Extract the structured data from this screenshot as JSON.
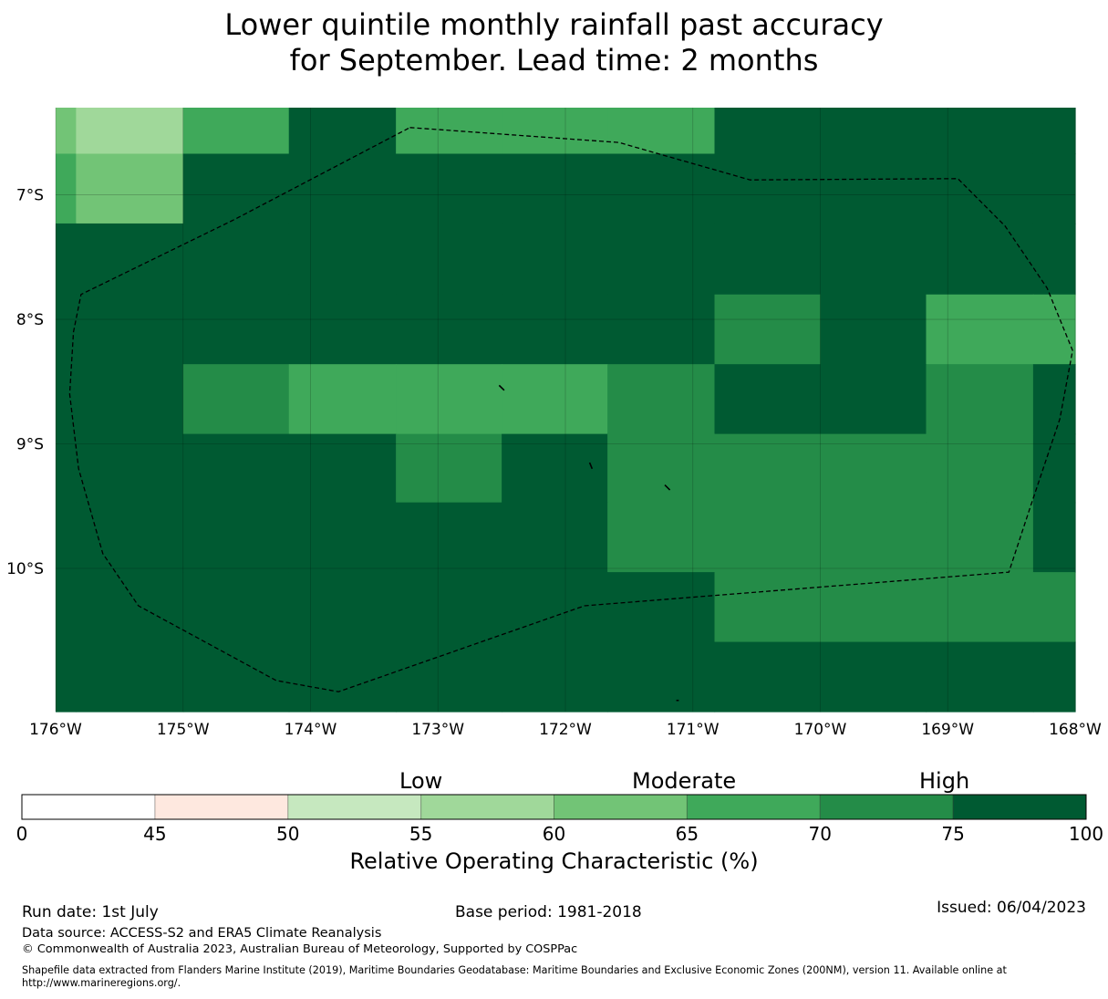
{
  "title": {
    "line1": "Lower quintile monthly rainfall past accuracy",
    "line2": "for September. Lead time: 2 months"
  },
  "map": {
    "lon_range": [
      -176,
      -168
    ],
    "lat_range": [
      -11.15,
      -6.3
    ],
    "lon_ticks": [
      {
        "value": -176,
        "label": "176°W"
      },
      {
        "value": -175,
        "label": "175°W"
      },
      {
        "value": -174,
        "label": "174°W"
      },
      {
        "value": -173,
        "label": "173°W"
      },
      {
        "value": -172,
        "label": "172°W"
      },
      {
        "value": -171,
        "label": "171°W"
      },
      {
        "value": -170,
        "label": "170°W"
      },
      {
        "value": -169,
        "label": "169°W"
      },
      {
        "value": -168,
        "label": "168°W"
      }
    ],
    "lat_ticks": [
      {
        "value": -7,
        "label": "7°S"
      },
      {
        "value": -8,
        "label": "8°S"
      },
      {
        "value": -9,
        "label": "9°S"
      },
      {
        "value": -10,
        "label": "10°S"
      }
    ],
    "grid_lines": true,
    "cell_lon_edges": [
      -176,
      -175.84,
      -175,
      -174.17,
      -173.33,
      -172.5,
      -171.67,
      -170.83,
      -170,
      -169.17,
      -168.33,
      -168
    ],
    "cell_lat_edges": [
      -6.3,
      -6.67,
      -7.23,
      -7.8,
      -8.36,
      -8.92,
      -9.47,
      -10.03,
      -10.59,
      -11.15
    ],
    "bin_rows": [
      [
        4,
        3,
        5,
        7,
        5,
        5,
        5,
        7,
        7,
        7,
        7
      ],
      [
        5,
        4,
        7,
        7,
        7,
        7,
        7,
        7,
        7,
        7,
        7
      ],
      [
        7,
        7,
        7,
        7,
        7,
        7,
        7,
        7,
        7,
        7,
        7
      ],
      [
        7,
        7,
        7,
        7,
        7,
        7,
        7,
        6,
        7,
        5,
        5
      ],
      [
        7,
        7,
        6,
        5,
        5,
        5,
        6,
        7,
        7,
        6,
        7
      ],
      [
        7,
        7,
        7,
        7,
        6,
        7,
        6,
        6,
        6,
        6,
        7
      ],
      [
        7,
        7,
        7,
        7,
        7,
        7,
        6,
        6,
        6,
        6,
        7
      ],
      [
        7,
        7,
        7,
        7,
        7,
        7,
        7,
        6,
        6,
        6,
        6
      ],
      [
        7,
        7,
        7,
        7,
        7,
        7,
        7,
        7,
        7,
        7,
        7
      ]
    ],
    "eez_boundary": [
      [
        -173.22,
        -6.46
      ],
      [
        -171.58,
        -6.58
      ],
      [
        -170.55,
        -6.88
      ],
      [
        -168.92,
        -6.87
      ],
      [
        -168.55,
        -7.25
      ],
      [
        -168.22,
        -7.75
      ],
      [
        -168.02,
        -8.25
      ],
      [
        -168.12,
        -8.8
      ],
      [
        -168.35,
        -9.5
      ],
      [
        -168.52,
        -10.03
      ],
      [
        -171.85,
        -10.3
      ],
      [
        -173.78,
        -10.99
      ],
      [
        -174.27,
        -10.9
      ],
      [
        -175.35,
        -10.3
      ],
      [
        -175.63,
        -9.88
      ],
      [
        -175.82,
        -9.2
      ],
      [
        -175.89,
        -8.6
      ],
      [
        -175.86,
        -8.1
      ],
      [
        -175.8,
        -7.8
      ],
      [
        -174.6,
        -7.2
      ],
      [
        -173.22,
        -6.46
      ]
    ],
    "islands": [
      [
        [
          -172.52,
          -8.53
        ],
        [
          -172.48,
          -8.57
        ]
      ],
      [
        [
          -171.81,
          -9.15
        ],
        [
          -171.79,
          -9.2
        ]
      ],
      [
        [
          -171.22,
          -9.33
        ],
        [
          -171.18,
          -9.37
        ]
      ],
      [
        [
          -171.13,
          -11.06
        ],
        [
          -171.11,
          -11.06
        ]
      ]
    ]
  },
  "colorbar": {
    "boundaries": [
      0,
      45,
      50,
      55,
      60,
      65,
      70,
      75,
      100
    ],
    "colors": [
      "#ffffff",
      "#fee8df",
      "#c6e8bf",
      "#a0d89a",
      "#72c476",
      "#3fa95a",
      "#248c48",
      "#005a32"
    ],
    "tick_labels": [
      "0",
      "45",
      "50",
      "55",
      "60",
      "65",
      "70",
      "75",
      "100"
    ],
    "category_labels": {
      "low": "Low",
      "moderate": "Moderate",
      "high": "High"
    },
    "label": "Relative Operating Characteristic (%)"
  },
  "footer": {
    "run_date": "Run date: 1st July",
    "base_period": "Base period: 1981-2018",
    "issued": "Issued: 06/04/2023",
    "data_source": "Data source: ACCESS-S2 and ERA5 Climate Reanalysis",
    "copyright": "© Commonwealth of Australia 2023, Australian Bureau of Meteorology, Supported by COSPPac",
    "shapefile_line1": "Shapefile data extracted from Flanders Marine Institute (2019), Maritime Boundaries Geodatabase: Maritime Boundaries and Exclusive Economic Zones (200NM), version 11. Available online at",
    "shapefile_line2": "http://www.marineregions.org/."
  }
}
